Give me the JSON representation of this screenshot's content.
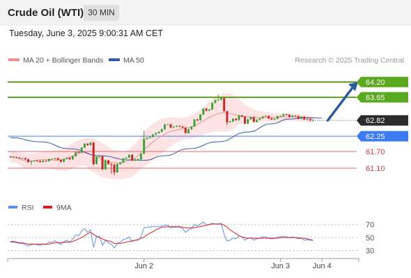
{
  "header": {
    "title": "Crude Oil (WTI)",
    "timeframe": "30 MIN",
    "datetime": "Tuesday, June 3, 2025 9:00:31 AM CET"
  },
  "chart_data": [
    {
      "type": "line",
      "description_role": "price",
      "legend": [
        {
          "name": "MA 20 + Bollinger Bands",
          "color": "#f08c8c"
        },
        {
          "name": "MA 50",
          "color": "#2d5aa0"
        }
      ],
      "credit": "Research © 2025 Trading Central",
      "ylim": [
        60.15,
        64.75
      ],
      "xlim": [
        0,
        109
      ],
      "x_ticks": [
        {
          "index": 45,
          "label": "Jun 2"
        },
        {
          "index": 91,
          "label": "Jun 3"
        },
        {
          "index": 105,
          "label": "Jun 4"
        }
      ],
      "candles": {
        "open": [
          61.52,
          61.5,
          61.5,
          61.48,
          61.46,
          61.46,
          61.42,
          61.32,
          61.35,
          61.37,
          61.36,
          61.32,
          61.37,
          61.35,
          61.43,
          61.43,
          61.46,
          61.4,
          61.33,
          61.43,
          61.47,
          61.42,
          61.53,
          61.68,
          61.67,
          61.84,
          61.98,
          61.93,
          62.02,
          61.25,
          61.51,
          61.53,
          61.06,
          61.38,
          61.25,
          61.23,
          60.95,
          61.25,
          61.3,
          61.45,
          61.48,
          61.58,
          61.38,
          61.42,
          61.42,
          61.62,
          62.15,
          62.19,
          62.22,
          62.31,
          62.36,
          62.41,
          62.5,
          62.67,
          62.68,
          62.56,
          62.59,
          62.62,
          62.6,
          62.56,
          62.36,
          62.5,
          62.6,
          62.85,
          62.82,
          63.03,
          63.24,
          63.17,
          63.21,
          63.45,
          63.54,
          63.56,
          63.62,
          63.15,
          62.75,
          62.78,
          62.88,
          62.83,
          63.0,
          62.95,
          62.7,
          62.86,
          62.94,
          62.76,
          62.84,
          62.89,
          62.96,
          62.98,
          62.89,
          62.85,
          62.88,
          62.97,
          62.97,
          63.04,
          63.02,
          62.94,
          62.99,
          62.97,
          62.88,
          62.95,
          62.85,
          62.86,
          62.82
        ],
        "close": [
          61.5,
          61.5,
          61.48,
          61.46,
          61.46,
          61.42,
          61.32,
          61.35,
          61.37,
          61.36,
          61.32,
          61.37,
          61.35,
          61.43,
          61.43,
          61.46,
          61.4,
          61.33,
          61.43,
          61.47,
          61.42,
          61.53,
          61.68,
          61.67,
          61.84,
          61.98,
          61.93,
          62.02,
          61.25,
          61.51,
          61.53,
          61.06,
          61.38,
          61.25,
          61.23,
          60.95,
          61.25,
          61.3,
          61.45,
          61.48,
          61.58,
          61.38,
          61.42,
          61.42,
          61.62,
          62.15,
          62.19,
          62.22,
          62.31,
          62.36,
          62.41,
          62.5,
          62.67,
          62.68,
          62.56,
          62.59,
          62.62,
          62.6,
          62.56,
          62.36,
          62.5,
          62.6,
          62.85,
          62.82,
          63.03,
          63.24,
          63.17,
          63.21,
          63.45,
          63.54,
          63.56,
          63.62,
          63.15,
          62.75,
          62.78,
          62.88,
          62.83,
          63.0,
          62.95,
          62.7,
          62.86,
          62.94,
          62.76,
          62.84,
          62.89,
          62.96,
          62.98,
          62.89,
          62.85,
          62.88,
          62.97,
          62.97,
          63.04,
          63.02,
          62.94,
          62.99,
          62.97,
          62.88,
          62.95,
          62.85,
          62.86,
          62.82,
          62.82
        ],
        "high": [
          61.54,
          61.52,
          61.51,
          61.5,
          61.48,
          61.48,
          61.44,
          61.37,
          61.39,
          61.39,
          61.38,
          61.39,
          61.39,
          61.45,
          61.46,
          61.48,
          61.48,
          61.42,
          61.45,
          61.49,
          61.5,
          61.55,
          61.7,
          61.72,
          61.86,
          62.0,
          62.0,
          62.05,
          62.04,
          61.53,
          61.55,
          61.56,
          61.41,
          61.4,
          61.28,
          61.25,
          61.27,
          61.33,
          61.47,
          61.5,
          61.6,
          61.6,
          61.45,
          61.45,
          61.64,
          62.45,
          62.21,
          62.24,
          62.33,
          62.39,
          62.43,
          62.52,
          62.7,
          62.7,
          62.69,
          62.62,
          62.64,
          62.64,
          62.62,
          62.58,
          62.53,
          62.62,
          62.87,
          62.88,
          63.05,
          63.27,
          63.26,
          63.23,
          63.47,
          63.58,
          63.75,
          63.65,
          63.64,
          63.17,
          62.8,
          62.9,
          62.9,
          63.02,
          63.02,
          62.97,
          62.88,
          62.96,
          62.96,
          62.86,
          62.91,
          62.98,
          63.0,
          63.0,
          62.92,
          62.9,
          62.99,
          63.0,
          63.06,
          63.06,
          63.04,
          63.01,
          63.0,
          62.99,
          62.97,
          62.97,
          62.88,
          62.88,
          62.85
        ],
        "low": [
          61.48,
          61.47,
          61.46,
          61.44,
          61.43,
          61.4,
          61.3,
          61.21,
          61.33,
          61.34,
          61.3,
          61.3,
          61.33,
          61.33,
          61.4,
          61.41,
          61.38,
          61.31,
          61.31,
          61.41,
          61.4,
          61.4,
          61.51,
          61.65,
          61.65,
          61.82,
          61.9,
          61.91,
          61.2,
          61.23,
          61.49,
          61.04,
          61.03,
          61.23,
          60.9,
          60.85,
          60.93,
          61.22,
          61.27,
          61.43,
          61.46,
          61.35,
          61.35,
          61.39,
          61.4,
          61.6,
          62.13,
          62.17,
          62.2,
          62.29,
          62.34,
          62.39,
          62.48,
          62.65,
          62.54,
          62.54,
          62.57,
          62.58,
          62.54,
          62.34,
          62.34,
          62.48,
          62.58,
          62.8,
          62.8,
          63.0,
          63.15,
          63.15,
          63.19,
          63.43,
          63.52,
          63.54,
          63.13,
          62.65,
          62.73,
          62.76,
          62.81,
          62.81,
          62.93,
          62.68,
          62.68,
          62.84,
          62.74,
          62.74,
          62.82,
          62.87,
          62.94,
          62.87,
          62.83,
          62.83,
          62.86,
          62.95,
          62.95,
          63.0,
          62.92,
          62.92,
          62.95,
          62.86,
          62.86,
          62.83,
          62.83,
          62.79,
          62.79
        ]
      },
      "ma20": [
        61.5,
        61.52,
        61.48,
        61.44,
        61.4,
        61.37,
        61.35,
        61.36,
        61.37,
        61.39,
        61.4,
        61.41,
        61.41,
        61.41,
        61.4,
        61.38,
        61.38,
        61.4,
        61.43,
        61.46,
        61.5,
        61.55,
        61.6,
        61.63,
        61.65,
        61.68,
        61.65,
        61.6,
        61.55,
        61.5,
        61.45,
        61.4,
        61.37,
        61.34,
        61.31,
        61.3,
        61.29,
        61.3,
        61.32,
        61.35,
        61.38,
        61.42,
        61.47,
        61.55,
        61.65,
        61.75,
        61.85,
        61.95,
        62.05,
        62.13,
        62.2,
        62.26,
        62.32,
        62.38,
        62.42,
        62.45,
        62.48,
        62.5,
        62.52,
        62.54,
        62.56,
        62.58,
        62.63,
        62.68,
        62.74,
        62.8,
        62.87,
        62.93,
        62.98,
        63.02,
        63.06,
        63.08,
        63.1,
        63.09,
        63.07,
        63.04,
        63.02,
        63.0,
        62.98,
        62.96,
        62.95,
        62.94,
        62.93,
        62.92,
        62.92,
        62.92,
        62.92,
        62.93,
        62.93,
        62.93,
        62.93,
        62.94,
        62.94,
        62.95,
        62.95,
        62.95,
        62.95,
        62.94,
        62.93,
        62.92,
        62.9,
        62.88,
        62.86
      ],
      "bb_upper": [
        61.72,
        61.72,
        61.7,
        61.68,
        61.66,
        61.64,
        61.62,
        61.62,
        61.62,
        61.64,
        61.66,
        61.68,
        61.7,
        61.72,
        61.73,
        61.74,
        61.75,
        61.78,
        61.82,
        61.88,
        61.94,
        62.0,
        62.06,
        62.1,
        62.14,
        62.18,
        62.19,
        62.19,
        62.17,
        62.12,
        62.06,
        62.0,
        61.94,
        61.87,
        61.8,
        61.75,
        61.72,
        61.7,
        61.7,
        61.72,
        61.78,
        61.88,
        62.0,
        62.12,
        62.25,
        62.4,
        62.52,
        62.62,
        62.7,
        62.77,
        62.83,
        62.88,
        62.91,
        62.93,
        62.93,
        62.93,
        62.92,
        62.91,
        62.91,
        62.93,
        62.96,
        63.0,
        63.06,
        63.13,
        63.22,
        63.3,
        63.4,
        63.5,
        63.58,
        63.65,
        63.72,
        63.77,
        63.8,
        63.8,
        63.78,
        63.74,
        63.69,
        63.6,
        63.5,
        63.4,
        63.33,
        63.27,
        63.22,
        63.18,
        63.15,
        63.13,
        63.11,
        63.1,
        63.09,
        63.08,
        63.07,
        63.07,
        63.07,
        63.07,
        63.07,
        63.07,
        63.06,
        63.05,
        63.04,
        63.03,
        63.02,
        63.0,
        62.98
      ],
      "bb_lower": [
        61.28,
        61.32,
        61.28,
        61.22,
        61.15,
        61.1,
        61.08,
        61.08,
        61.09,
        61.1,
        61.12,
        61.12,
        61.1,
        61.08,
        61.06,
        61.04,
        61.02,
        61.0,
        61.01,
        61.02,
        61.05,
        61.09,
        61.13,
        61.16,
        61.18,
        61.2,
        61.12,
        61.03,
        60.95,
        60.88,
        60.82,
        60.77,
        60.75,
        60.73,
        60.72,
        60.7,
        60.7,
        60.7,
        60.72,
        60.74,
        60.76,
        60.8,
        60.88,
        60.98,
        61.08,
        61.15,
        61.23,
        61.3,
        61.38,
        61.47,
        61.55,
        61.63,
        61.71,
        61.81,
        61.89,
        61.95,
        62.02,
        62.08,
        62.12,
        62.14,
        62.15,
        62.16,
        62.19,
        62.22,
        62.25,
        62.29,
        62.33,
        62.37,
        62.4,
        62.42,
        62.42,
        62.41,
        62.42,
        62.42,
        62.45,
        62.5,
        62.58,
        62.67,
        62.72,
        62.76,
        62.78,
        62.79,
        62.79,
        62.78,
        62.77,
        62.77,
        62.77,
        62.77,
        62.77,
        62.77,
        62.77,
        62.77,
        62.78,
        62.79,
        62.79,
        62.79,
        62.8,
        62.8,
        62.79,
        62.78,
        62.76,
        62.74,
        62.72
      ],
      "ma50_points": [
        {
          "i": 0,
          "v": 62.2
        },
        {
          "i": 10,
          "v": 62.05
        },
        {
          "i": 20,
          "v": 61.8
        },
        {
          "i": 30,
          "v": 61.55
        },
        {
          "i": 40,
          "v": 61.4
        },
        {
          "i": 45,
          "v": 61.38
        },
        {
          "i": 52,
          "v": 61.55
        },
        {
          "i": 60,
          "v": 61.8
        },
        {
          "i": 70,
          "v": 62.05
        },
        {
          "i": 80,
          "v": 62.4
        },
        {
          "i": 88,
          "v": 62.7
        },
        {
          "i": 94,
          "v": 62.87
        },
        {
          "i": 100,
          "v": 62.92
        },
        {
          "i": 105,
          "v": 62.9
        }
      ],
      "levels": [
        {
          "value": 64.2,
          "label": "64.20",
          "kind": "resistance",
          "color": "#5aa820"
        },
        {
          "value": 63.65,
          "label": "63.65",
          "kind": "resistance",
          "color": "#5aa820"
        },
        {
          "value": 62.82,
          "label": "62.82",
          "kind": "last",
          "color": "#2b2b2b"
        },
        {
          "value": 62.25,
          "label": "62.25",
          "kind": "pivot",
          "color": "#3d7cf0"
        },
        {
          "value": 61.7,
          "label": "61.70",
          "kind": "support",
          "color": "#e06666"
        },
        {
          "value": 61.1,
          "label": "61.10",
          "kind": "support",
          "color": "#e06666"
        }
      ],
      "forecast_arrow": {
        "from_index": 106,
        "from_value": 62.82,
        "to_value": 64.2,
        "color": "#2c5a9c"
      },
      "colors": {
        "up": "#3aa53a",
        "down": "#c62828",
        "band": "#fde0e0"
      }
    },
    {
      "type": "line",
      "description_role": "rsi",
      "legend": [
        {
          "name": "RSI",
          "color": "#5b8de8"
        },
        {
          "name": "9MA",
          "color": "#d62020"
        }
      ],
      "ylim": [
        22,
        82
      ],
      "y_ticks": [
        30,
        50,
        70
      ],
      "series": [
        {
          "name": "RSI",
          "color": "#5b8de8",
          "values": [
            43,
            43,
            42,
            41,
            41,
            39,
            37,
            39,
            40,
            39,
            38,
            40,
            39,
            43,
            43,
            45,
            42,
            39,
            44,
            46,
            43,
            48,
            54,
            53,
            60,
            64,
            58,
            62,
            35,
            51,
            52,
            38,
            46,
            42,
            40,
            34,
            41,
            43,
            47,
            48,
            51,
            44,
            46,
            46,
            51,
            65,
            66,
            66,
            67,
            67,
            67,
            68,
            69,
            69,
            65,
            66,
            66,
            66,
            64,
            58,
            62,
            64,
            70,
            68,
            71,
            74,
            70,
            70,
            72,
            71,
            71,
            72,
            55,
            45,
            46,
            49,
            48,
            53,
            51,
            46,
            49,
            50,
            46,
            48,
            49,
            51,
            51,
            49,
            48,
            49,
            51,
            51,
            52,
            51,
            50,
            51,
            50,
            48,
            49,
            46,
            47,
            46,
            46
          ]
        },
        {
          "name": "9MA",
          "values": [
            44,
            44,
            43,
            42,
            42,
            41,
            40,
            40,
            40,
            40,
            40,
            40,
            40,
            40,
            41,
            42,
            42,
            42,
            43,
            43,
            43,
            44,
            46,
            48,
            50,
            53,
            56,
            58,
            55,
            52,
            50,
            48,
            46,
            45,
            44,
            41,
            41,
            41,
            42,
            43,
            44,
            45,
            46,
            47,
            49,
            51,
            54,
            57,
            59,
            62,
            64,
            66,
            66,
            67,
            67,
            67,
            67,
            67,
            66,
            65,
            65,
            65,
            65,
            66,
            67,
            68,
            69,
            70,
            71,
            71,
            71,
            71,
            69,
            66,
            62,
            59,
            56,
            53,
            51,
            50,
            49,
            49,
            49,
            49,
            49,
            49,
            49,
            49,
            49,
            49,
            49,
            50,
            50,
            50,
            50,
            50,
            50,
            50,
            49,
            49,
            48,
            47,
            46
          ]
        }
      ]
    }
  ]
}
